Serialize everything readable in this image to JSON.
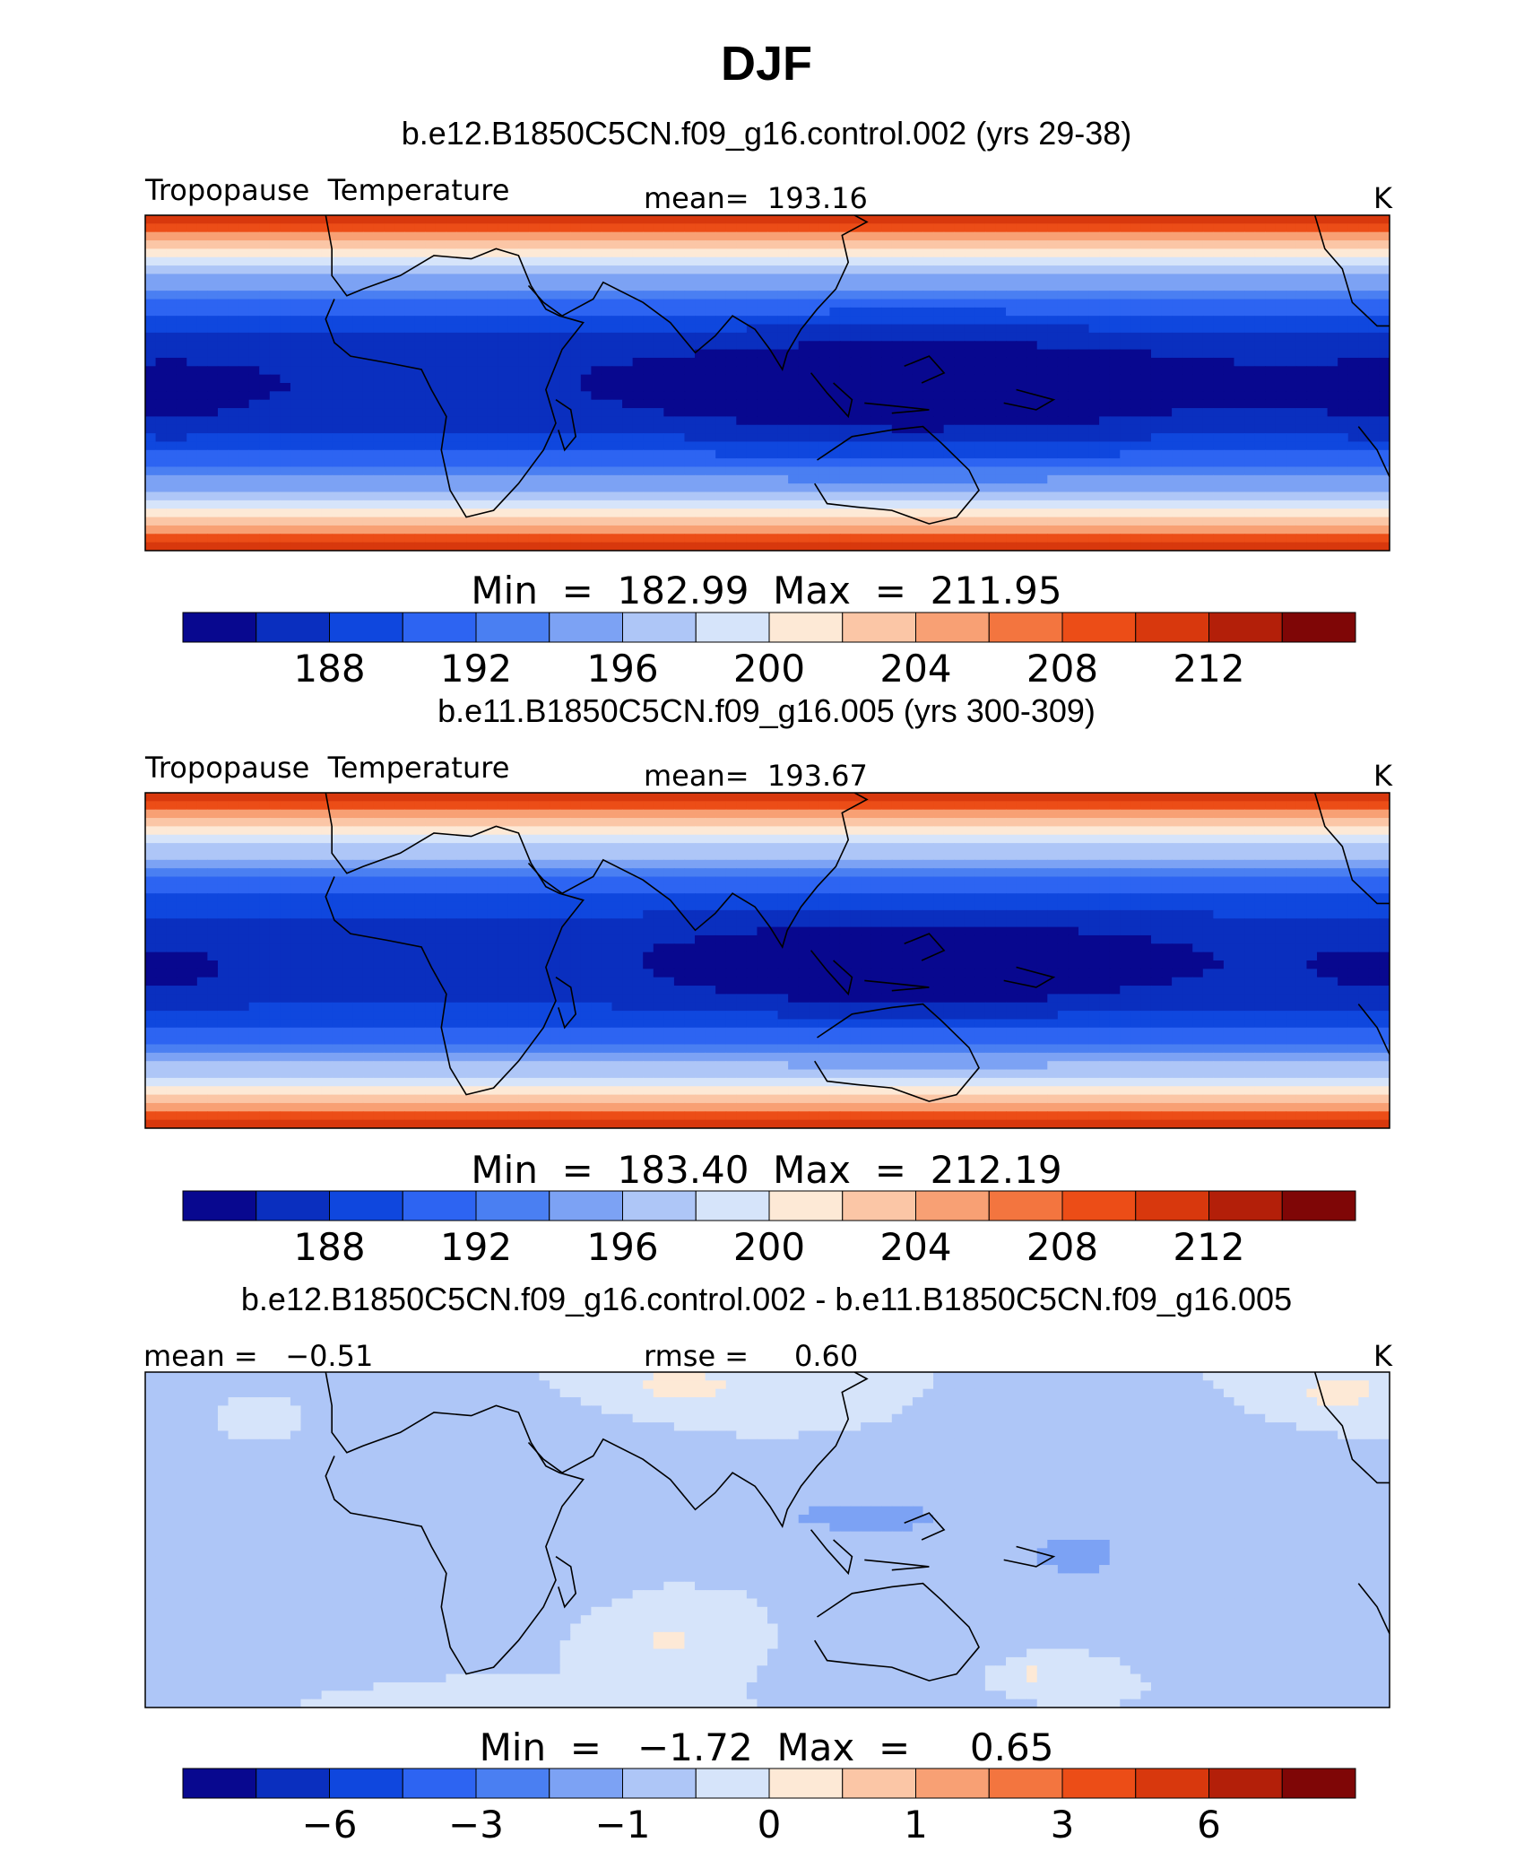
{
  "main_title": "DJF",
  "colors": {
    "temp_palette": [
      "#08088f",
      "#0a2fbf",
      "#0f47de",
      "#2d64f2",
      "#4a7ff2",
      "#7ca2f4",
      "#aec6f7",
      "#d6e4fa",
      "#fde9d6",
      "#fbc6a6",
      "#f8a074",
      "#f3753f",
      "#ec4d17",
      "#d8380d",
      "#b31f09",
      "#7f0606"
    ],
    "coast": "#000000"
  },
  "chart_data": [
    {
      "type": "heatmap",
      "panel": "top",
      "title": "b.e12.B1850C5CN.f09_g16.control.002 (yrs 29-38)",
      "left_label": "Tropopause  Temperature",
      "center_label": "mean=  193.16",
      "right_label": "K",
      "variable": "Tropopause Temperature",
      "units": "K",
      "mean": 193.16,
      "min": 182.99,
      "max": 211.95,
      "minmax_text": "Min  =  182.99  Max  =  211.95",
      "contour_levels": [
        186,
        188,
        190,
        192,
        194,
        196,
        198,
        200,
        202,
        204,
        206,
        208,
        210,
        212,
        214
      ],
      "colorbar_ticks": [
        "188",
        "192",
        "196",
        "200",
        "204",
        "208",
        "212"
      ],
      "model": {
        "equator_t": 186.0,
        "high_lat_t": 212.0,
        "warm_pool_t": 183.0
      }
    },
    {
      "type": "heatmap",
      "panel": "middle",
      "title": "b.e11.B1850C5CN.f09_g16.005 (yrs 300-309)",
      "left_label": "Tropopause  Temperature",
      "center_label": "mean=  193.67",
      "right_label": "K",
      "variable": "Tropopause Temperature",
      "units": "K",
      "mean": 193.67,
      "min": 183.4,
      "max": 212.19,
      "minmax_text": "Min  =  183.40  Max  =  212.19",
      "contour_levels": [
        186,
        188,
        190,
        192,
        194,
        196,
        198,
        200,
        202,
        204,
        206,
        208,
        210,
        212,
        214
      ],
      "colorbar_ticks": [
        "188",
        "192",
        "196",
        "200",
        "204",
        "208",
        "212"
      ],
      "model": {
        "equator_t": 186.5,
        "high_lat_t": 212.2,
        "warm_pool_t": 183.4
      }
    },
    {
      "type": "heatmap",
      "panel": "bottom",
      "title": "b.e12.B1850C5CN.f09_g16.control.002 - b.e11.B1850C5CN.f09_g16.005",
      "left_label": "mean =   −0.51",
      "center_label": "rmse =     0.60",
      "right_label": "K",
      "variable": "Tropopause Temperature difference",
      "units": "K",
      "mean": -0.51,
      "rmse": 0.6,
      "min": -1.72,
      "max": 0.65,
      "minmax_text": "Min  =   −1.72  Max  =     0.65",
      "contour_levels": [
        -8,
        -6,
        -5,
        -3,
        -2,
        -1,
        -0.5,
        0,
        0.5,
        1,
        2,
        3,
        5,
        6,
        8
      ],
      "colorbar_ticks": [
        "−6",
        "−3",
        "−1",
        "0",
        "1",
        "3",
        "6"
      ],
      "model": {
        "base": -0.5
      }
    }
  ]
}
